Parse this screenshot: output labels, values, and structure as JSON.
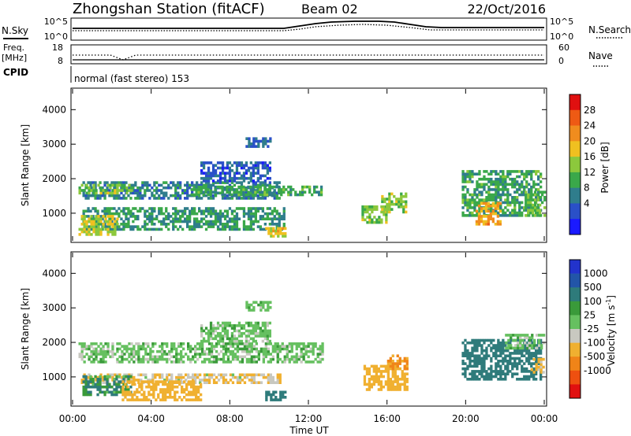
{
  "header": {
    "station": "Zhongshan Station (fitACF)",
    "beam": "Beam 02",
    "date": "22/Oct/2016"
  },
  "summary_panels": {
    "nsky_label": "N.Sky",
    "freq_label_1": "Freq.",
    "freq_label_2": "[MHz]",
    "cpid_label": "CPID",
    "nsearch_label": "N.Search",
    "nave_label": "Nave",
    "nsky_ticks": [
      "10^5",
      "10^0"
    ],
    "nsearch_ticks": [
      "10^5",
      "10^0"
    ],
    "freq_ticks": [
      "18",
      "8"
    ],
    "nave_ticks": [
      "60",
      "0"
    ],
    "cpid_text": "normal (fast stereo) 153"
  },
  "axes": {
    "xlabel": "Time UT",
    "ylabel": "Slant Range [km]",
    "x_ticks": [
      "00:00",
      "04:00",
      "08:00",
      "12:00",
      "16:00",
      "20:00",
      "00:00"
    ],
    "y_ticks": [
      "1000",
      "2000",
      "3000",
      "4000"
    ]
  },
  "colorbars": {
    "power_label": "Power [dB]",
    "power_ticks": [
      "28",
      "24",
      "20",
      "16",
      "12",
      "8",
      "4"
    ],
    "power_colors": [
      "#1a1aff",
      "#2a50c8",
      "#2f7d8c",
      "#3aa84a",
      "#8cc83c",
      "#f0c020",
      "#f08c1e",
      "#ee5a14",
      "#e01010"
    ],
    "velocity_label_main": "Velocity [m s",
    "velocity_label_exp": "-1",
    "velocity_label_close": "]",
    "velocity_ticks": [
      "1000",
      "500",
      "100",
      "25",
      "-25",
      "-100",
      "-500",
      "-1000"
    ],
    "velocity_colors": [
      "#2233cc",
      "#2255a8",
      "#2e7b7b",
      "#3a9a3a",
      "#66c060",
      "#c8c8c0",
      "#f0b030",
      "#f08418",
      "#ee5010",
      "#e01010"
    ]
  },
  "chart_data": [
    {
      "type": "heatmap",
      "title": "Power",
      "x_range_hours": [
        0,
        24
      ],
      "ylim": [
        200,
        4600
      ],
      "colorbar_range": [
        0,
        32
      ],
      "regions": [
        {
          "t0": 0.5,
          "t1": 10.8,
          "r0": 500,
          "r1": 1150,
          "v": 11
        },
        {
          "t0": 0.5,
          "t1": 10.5,
          "r0": 1400,
          "r1": 1900,
          "v": 9
        },
        {
          "t0": 0.3,
          "t1": 2.3,
          "r0": 350,
          "r1": 950,
          "v": 17
        },
        {
          "t0": 6.0,
          "t1": 12.7,
          "r0": 1500,
          "r1": 1800,
          "v": 12
        },
        {
          "t0": 0.3,
          "t1": 3.0,
          "r0": 1550,
          "r1": 1800,
          "v": 15
        },
        {
          "t0": 6.5,
          "t1": 10.0,
          "r0": 1900,
          "r1": 2500,
          "v": 6
        },
        {
          "t0": 8.8,
          "t1": 10.0,
          "r0": 2900,
          "r1": 3150,
          "v": 7
        },
        {
          "t0": 9.8,
          "t1": 10.8,
          "r0": 300,
          "r1": 600,
          "v": 19
        },
        {
          "t0": 14.7,
          "t1": 16.0,
          "r0": 700,
          "r1": 1200,
          "v": 15
        },
        {
          "t0": 15.7,
          "t1": 17.0,
          "r0": 1000,
          "r1": 1600,
          "v": 16
        },
        {
          "t0": 19.8,
          "t1": 23.8,
          "r0": 900,
          "r1": 2200,
          "v": 12
        },
        {
          "t0": 20.5,
          "t1": 21.8,
          "r0": 650,
          "r1": 1300,
          "v": 22
        },
        {
          "t0": 23.0,
          "t1": 24.0,
          "r0": 900,
          "r1": 1600,
          "v": 14
        }
      ]
    },
    {
      "type": "heatmap",
      "title": "Velocity",
      "x_range_hours": [
        0,
        24
      ],
      "ylim": [
        200,
        4600
      ],
      "colorbar_range": [
        -1000,
        1000
      ],
      "regions": [
        {
          "t0": 0.3,
          "t1": 10.5,
          "r0": 800,
          "r1": 1100,
          "v": -60
        },
        {
          "t0": 0.3,
          "t1": 12.7,
          "r0": 1400,
          "r1": 2000,
          "v": 0
        },
        {
          "t0": 0.5,
          "t1": 3.0,
          "r0": 450,
          "r1": 1000,
          "v": 60
        },
        {
          "t0": 2.5,
          "t1": 6.5,
          "r0": 300,
          "r1": 900,
          "v": -120
        },
        {
          "t0": 6.5,
          "t1": 10.0,
          "r0": 2000,
          "r1": 2600,
          "v": 0
        },
        {
          "t0": 8.8,
          "t1": 10.0,
          "r0": 2900,
          "r1": 3150,
          "v": 0
        },
        {
          "t0": 9.8,
          "t1": 10.8,
          "r0": 300,
          "r1": 600,
          "v": 110
        },
        {
          "t0": 14.8,
          "t1": 17.0,
          "r0": 600,
          "r1": 1300,
          "v": -150
        },
        {
          "t0": 16.0,
          "t1": 17.0,
          "r0": 1200,
          "r1": 1600,
          "v": -300
        },
        {
          "t0": 19.8,
          "t1": 23.8,
          "r0": 900,
          "r1": 2100,
          "v": 200
        },
        {
          "t0": 22.0,
          "t1": 24.0,
          "r0": 1800,
          "r1": 2200,
          "v": 0
        },
        {
          "t0": 23.3,
          "t1": 24.0,
          "r0": 1100,
          "r1": 1500,
          "v": -80
        }
      ]
    }
  ]
}
